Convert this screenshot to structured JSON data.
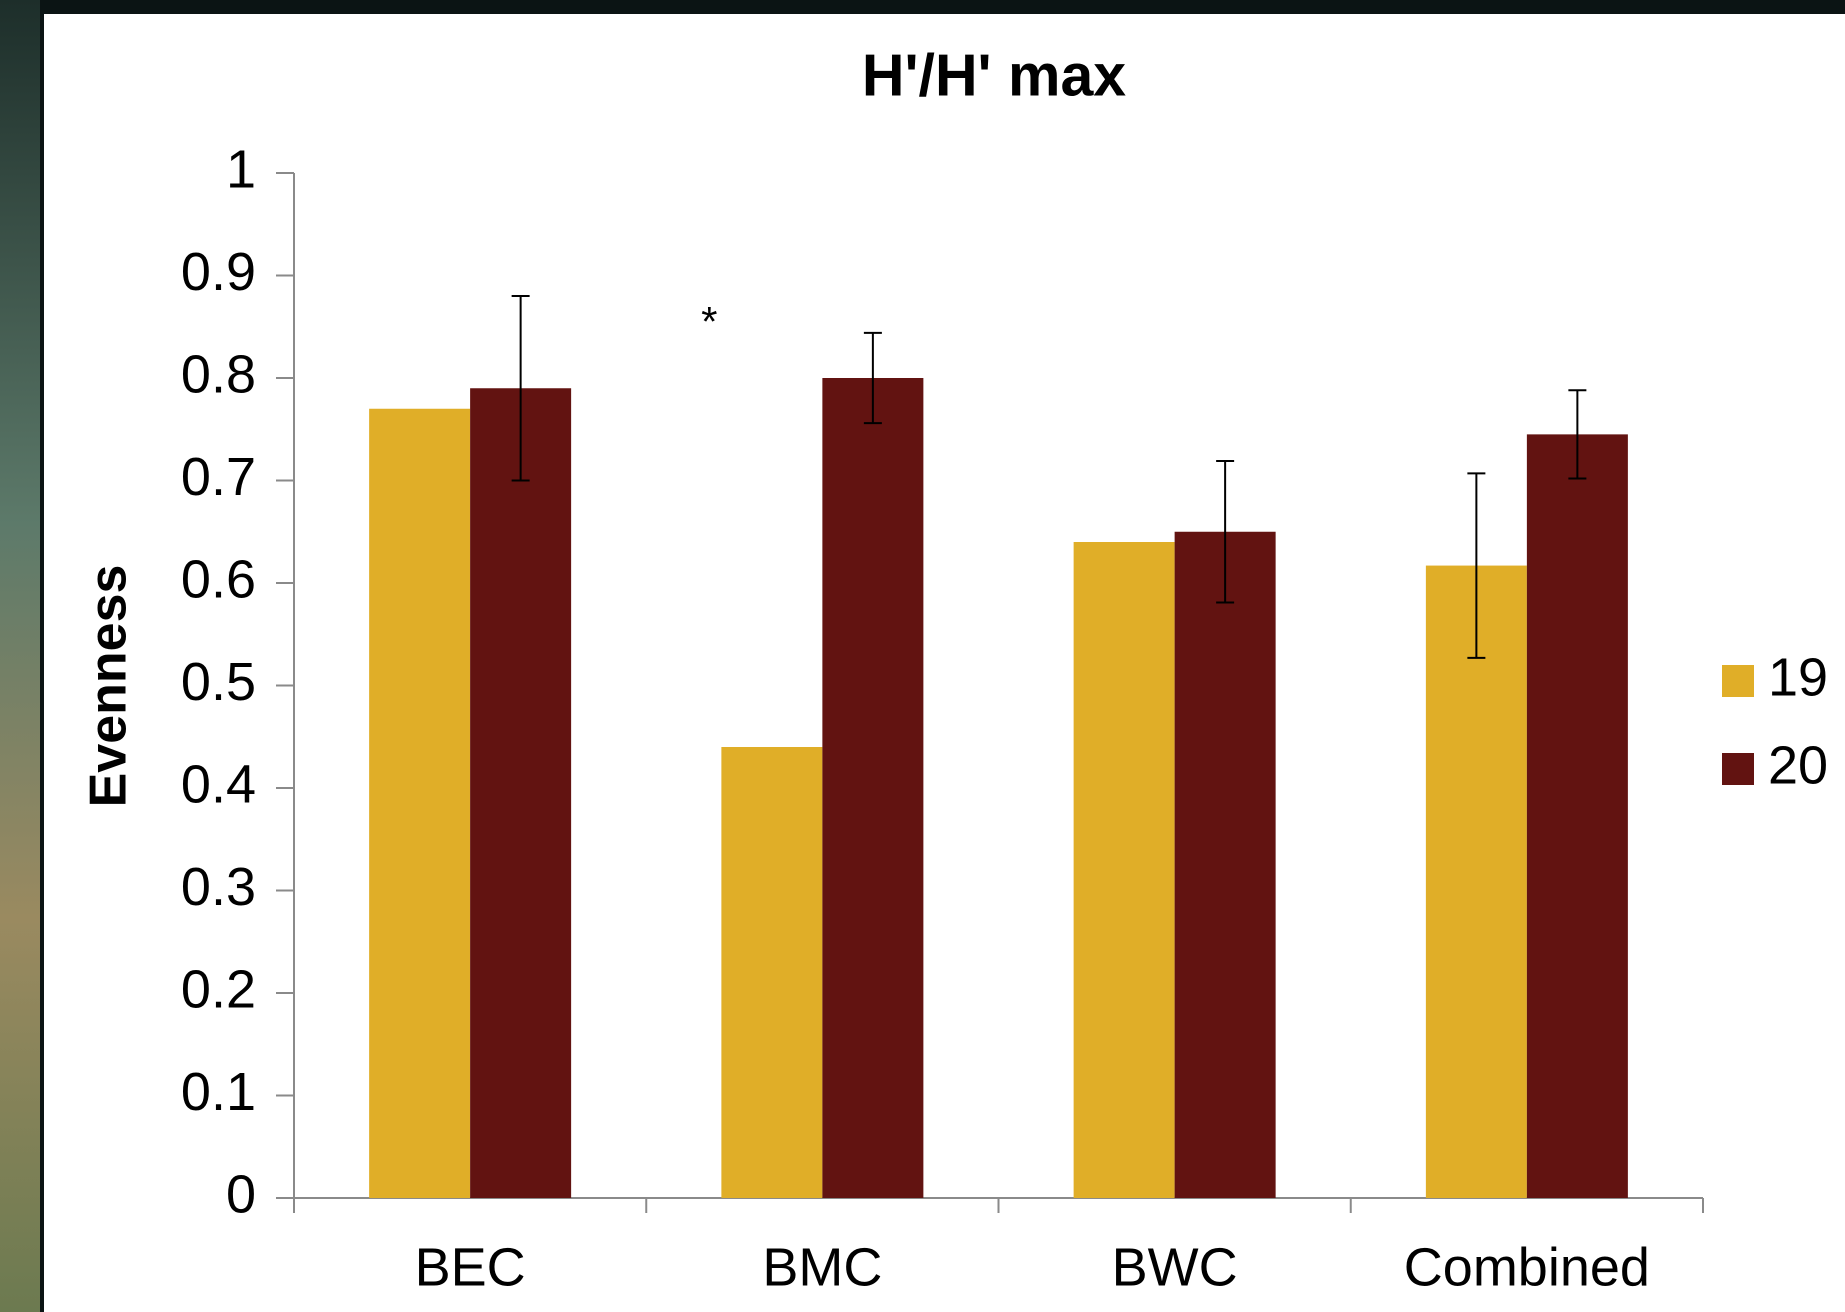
{
  "chart_data": {
    "type": "bar",
    "title": "H'/H' max",
    "y_label": "Evenness",
    "annotations": [
      "*"
    ],
    "categories": [
      "BEC",
      "BMC",
      "BWC",
      "Combined"
    ],
    "series": [
      {
        "name": "19",
        "color": "#e0ae28",
        "values": [
          0.77,
          0.44,
          0.64,
          0.617
        ],
        "errors": [
          null,
          null,
          null,
          0.09
        ]
      },
      {
        "name": "20",
        "color": "#621311",
        "values": [
          0.79,
          0.8,
          0.65,
          0.745
        ],
        "errors": [
          0.09,
          0.044,
          0.069,
          0.043
        ]
      }
    ],
    "ylim": [
      0,
      1
    ],
    "yticks": [
      0,
      0.1,
      0.2,
      0.3,
      0.4,
      0.5,
      0.6,
      0.7,
      0.8,
      0.9,
      1
    ],
    "grid": false,
    "legend": "right"
  }
}
